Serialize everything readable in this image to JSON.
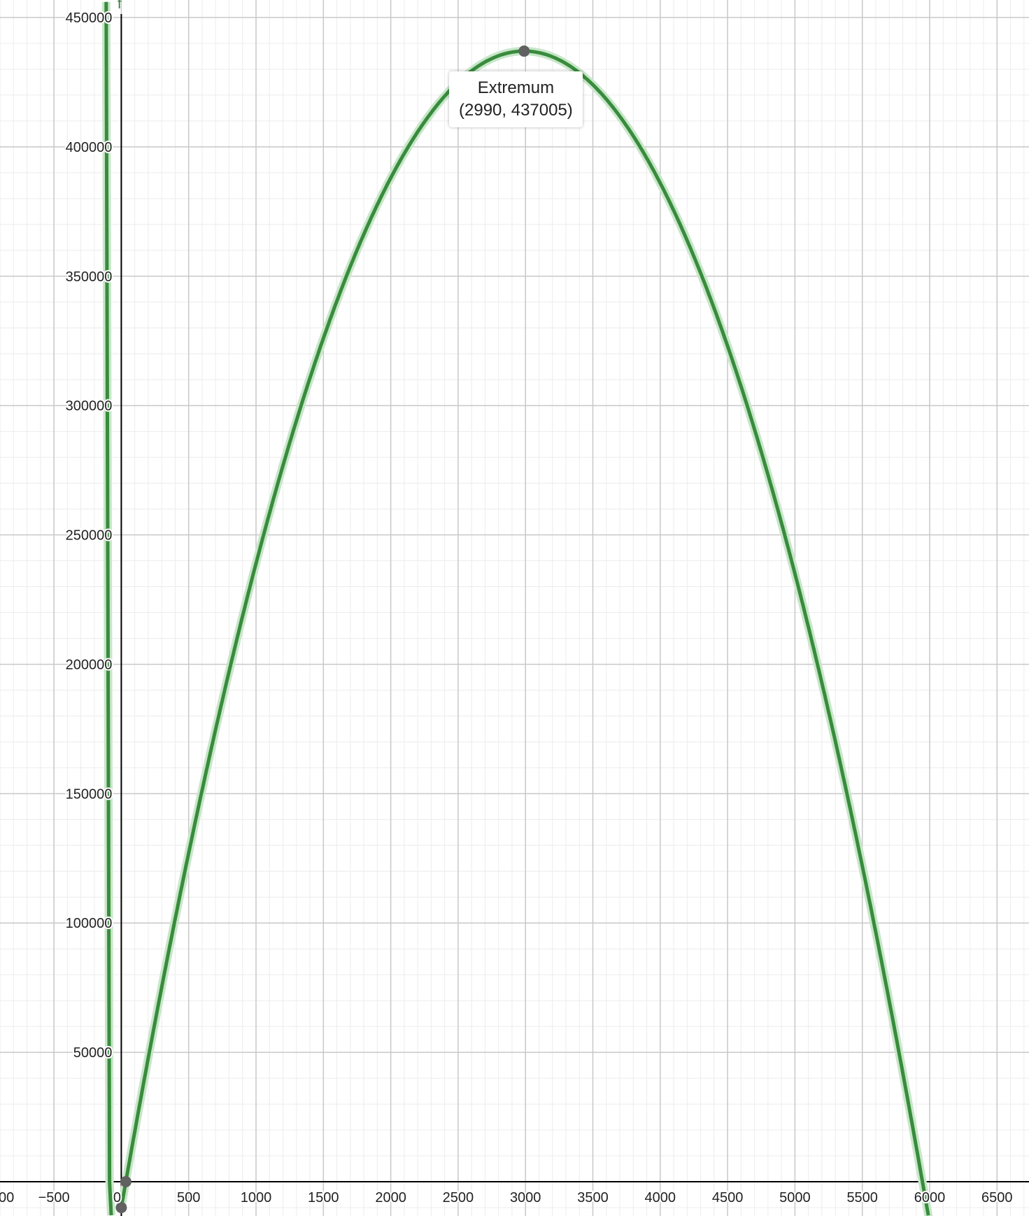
{
  "chart_data": {
    "type": "line",
    "function_label": "f",
    "xlim": [
      -900,
      6990
    ],
    "ylim": [
      -13000,
      456000
    ],
    "grid": true,
    "x_major_step": 500,
    "y_major_step": 50000,
    "x_ticks": [
      -500,
      0,
      500,
      1000,
      1500,
      2000,
      2500,
      3000,
      3500,
      4000,
      4500,
      5000,
      5500,
      6000,
      6500
    ],
    "y_ticks": [
      50000,
      100000,
      150000,
      200000,
      250000,
      300000,
      350000,
      400000,
      450000
    ],
    "x_tick_partial_left": "00",
    "series": [
      {
        "expression": "-0.05x^2 + 299x - 10000",
        "coefficients": [
          -0.05,
          299,
          -10000
        ],
        "color": "#388c3c"
      },
      {
        "branch_points": [
          [
            -112,
            456000
          ],
          [
            -87,
            0
          ],
          [
            -75,
            -13000
          ]
        ],
        "color": "#388c3c"
      }
    ],
    "points": [
      {
        "x": 2990,
        "y": 437005
      },
      {
        "x": 33.6,
        "y": 0
      },
      {
        "x": 0,
        "y": -10000
      }
    ],
    "annotation": {
      "title": "Extremum",
      "coords": "(2990, 437005)"
    },
    "colors": {
      "curve": "#388c3c",
      "halo": "#c8e6c9",
      "point": "#616161",
      "grid_major": "#c8c8c8",
      "grid_minor": "#ececec",
      "axis": "#000000"
    }
  }
}
